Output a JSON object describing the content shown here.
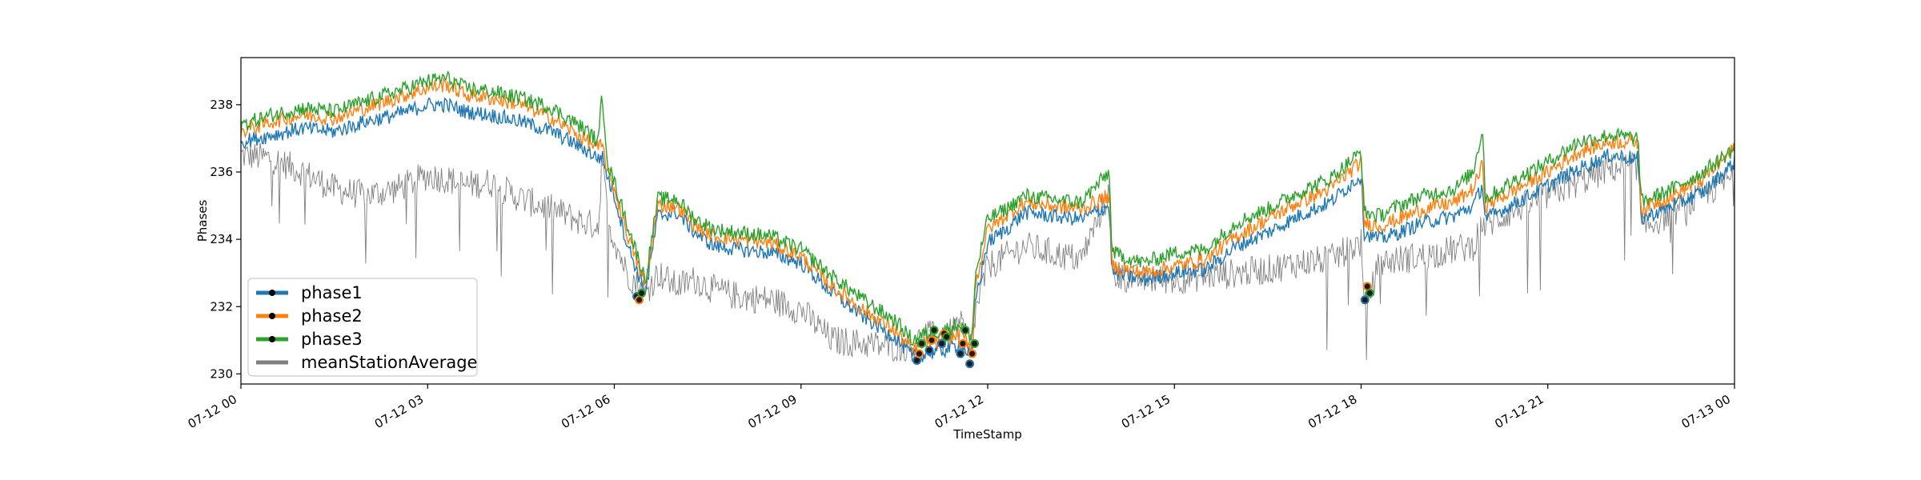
{
  "chart_data": {
    "type": "line",
    "title": "",
    "xlabel": "TimeStamp",
    "ylabel": "Phases",
    "xlim": [
      "07-12 00",
      "07-13 00"
    ],
    "ylim": [
      229.7,
      239.4
    ],
    "x_ticks": [
      "07-12 00",
      "07-12 03",
      "07-12 06",
      "07-12 09",
      "07-12 12",
      "07-12 15",
      "07-12 18",
      "07-12 21",
      "07-13 00"
    ],
    "y_ticks": [
      230,
      232,
      234,
      236,
      238
    ],
    "legend_position": "lower-left",
    "grid": false,
    "x_hours": [
      0,
      0.5,
      1,
      1.5,
      2,
      2.5,
      3,
      3.3,
      3.6,
      4,
      4.5,
      5,
      5.5,
      5.75,
      5.8,
      5.9,
      6,
      6.2,
      6.5,
      6.7,
      7,
      7.3,
      7.6,
      8,
      8.5,
      9,
      9.5,
      10,
      10.5,
      10.8,
      11,
      11.3,
      11.55,
      11.75,
      11.8,
      12,
      12.3,
      12.6,
      13,
      13.5,
      13.95,
      14,
      14.5,
      15,
      15.5,
      16,
      16.5,
      17,
      17.5,
      18,
      18.05,
      18.3,
      18.6,
      19,
      19.5,
      19.8,
      19.95,
      20,
      20.5,
      21,
      21.5,
      22,
      22.45,
      22.5,
      23,
      23.5,
      24
    ],
    "series": [
      {
        "name": "phase1",
        "color": "#1f77b4",
        "values": [
          236.9,
          237.1,
          237.3,
          237.2,
          237.5,
          237.7,
          238.0,
          238.0,
          237.8,
          237.7,
          237.5,
          237.2,
          236.7,
          236.4,
          236.5,
          235.8,
          235.3,
          233.9,
          232.4,
          234.7,
          234.8,
          234.2,
          233.8,
          233.7,
          233.6,
          233.3,
          232.4,
          231.7,
          231.1,
          230.5,
          230.6,
          230.7,
          230.9,
          230.5,
          232.2,
          233.9,
          234.3,
          234.8,
          234.7,
          234.6,
          235.0,
          233.0,
          232.8,
          233.0,
          233.1,
          233.8,
          234.2,
          234.7,
          235.1,
          235.9,
          234.2,
          234.0,
          234.2,
          234.5,
          234.7,
          235.0,
          235.6,
          234.6,
          235.1,
          235.6,
          236.1,
          236.5,
          236.4,
          234.6,
          235.0,
          235.4,
          236.3
        ]
      },
      {
        "name": "phase2",
        "color": "#ff7f0e",
        "values": [
          237.2,
          237.5,
          237.7,
          237.6,
          237.9,
          238.2,
          238.5,
          238.6,
          238.3,
          238.2,
          238.0,
          237.6,
          237.0,
          236.7,
          236.8,
          236.0,
          235.5,
          234.2,
          232.6,
          235.0,
          235.0,
          234.4,
          234.1,
          234.0,
          233.9,
          233.5,
          232.6,
          231.9,
          231.3,
          230.7,
          230.9,
          231.0,
          231.2,
          230.8,
          232.6,
          234.3,
          234.7,
          235.1,
          235.0,
          234.9,
          235.3,
          233.2,
          233.0,
          233.2,
          233.4,
          234.1,
          234.6,
          235.1,
          235.5,
          236.3,
          234.5,
          234.4,
          234.6,
          234.9,
          235.1,
          235.5,
          236.2,
          235.0,
          235.5,
          236.0,
          236.6,
          236.9,
          236.9,
          234.9,
          235.3,
          235.8,
          236.7
        ]
      },
      {
        "name": "phase3",
        "color": "#2ca02c",
        "values": [
          237.4,
          237.7,
          237.9,
          237.8,
          238.1,
          238.4,
          238.7,
          238.8,
          238.5,
          238.4,
          238.2,
          237.9,
          237.3,
          236.9,
          238.4,
          236.2,
          235.7,
          234.5,
          232.8,
          235.2,
          235.2,
          234.6,
          234.3,
          234.2,
          234.1,
          233.7,
          232.9,
          232.2,
          231.6,
          231.0,
          231.2,
          231.3,
          231.5,
          231.1,
          232.9,
          234.6,
          234.9,
          235.3,
          235.2,
          235.1,
          236.0,
          233.6,
          233.3,
          233.6,
          233.7,
          234.5,
          234.9,
          235.4,
          235.8,
          236.6,
          234.8,
          234.7,
          235.0,
          235.3,
          235.5,
          236.0,
          237.3,
          235.2,
          235.8,
          236.3,
          236.9,
          237.1,
          237.0,
          235.1,
          235.5,
          236.0,
          236.7
        ]
      },
      {
        "name": "meanStationAverage",
        "color": "#808080",
        "values": [
          236.5,
          236.4,
          236.0,
          235.5,
          235.3,
          235.5,
          235.9,
          235.8,
          235.6,
          235.7,
          235.2,
          234.9,
          234.5,
          234.4,
          236.5,
          234.5,
          234.0,
          233.0,
          232.4,
          233.0,
          232.6,
          232.8,
          232.5,
          232.3,
          232.2,
          231.9,
          231.0,
          230.9,
          230.8,
          230.8,
          231.2,
          231.0,
          231.5,
          230.8,
          231.8,
          233.2,
          233.5,
          233.8,
          233.6,
          233.4,
          235.4,
          232.9,
          232.8,
          232.8,
          232.9,
          233.0,
          233.1,
          233.3,
          233.4,
          233.9,
          231.9,
          233.3,
          233.4,
          233.5,
          233.7,
          233.8,
          234.5,
          234.4,
          234.9,
          235.3,
          235.7,
          236.1,
          236.2,
          234.3,
          234.8,
          235.3,
          235.9
        ]
      }
    ],
    "markers": [
      {
        "x_hour": 6.4,
        "values": [
          232.3,
          232.2,
          232.4
        ]
      },
      {
        "x_hour": 10.9,
        "values": [
          230.4,
          230.6,
          230.9
        ]
      },
      {
        "x_hour": 11.1,
        "values": [
          230.7,
          231.0,
          231.3
        ]
      },
      {
        "x_hour": 11.3,
        "values": [
          230.9,
          231.2,
          231.1
        ]
      },
      {
        "x_hour": 11.6,
        "values": [
          230.6,
          230.9,
          231.3
        ]
      },
      {
        "x_hour": 11.75,
        "values": [
          230.3,
          230.6,
          230.9
        ]
      },
      {
        "x_hour": 18.1,
        "values": [
          232.2,
          232.6,
          232.4
        ]
      }
    ]
  }
}
